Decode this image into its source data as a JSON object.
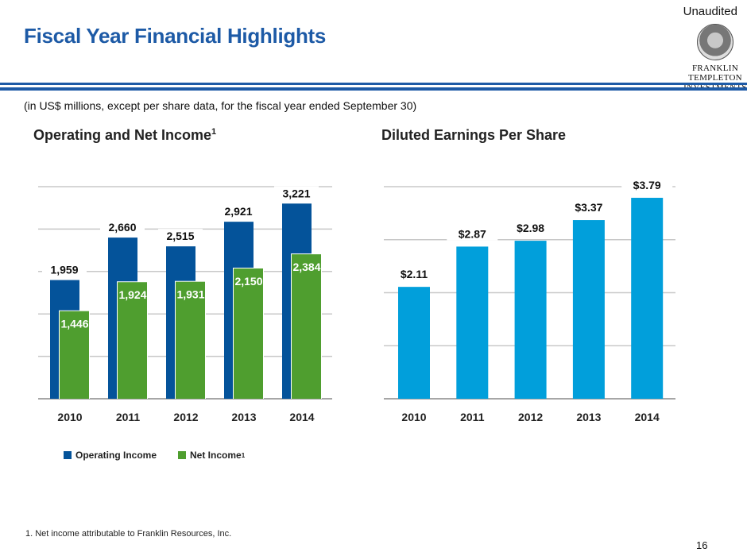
{
  "header": {
    "title": "Fiscal Year Financial Highlights",
    "status": "Unaudited",
    "logo_text": [
      "FRANKLIN TEMPLETON",
      "INVESTMENTS"
    ],
    "subtitle": "(in US$ millions, except per share data, for the fiscal year ended September 30)"
  },
  "colors": {
    "brand": "#1d5aa6",
    "operating": "#04539a",
    "net": "#4f9e2f",
    "eps": "#019fdb",
    "grid": "#c8c8c8"
  },
  "chart_data": [
    {
      "type": "bar",
      "title": "Operating and Net Income",
      "title_sup": "1",
      "categories": [
        "2010",
        "2011",
        "2012",
        "2013",
        "2014"
      ],
      "series": [
        {
          "name": "Operating Income",
          "values": [
            1959,
            2660,
            2515,
            2921,
            3221
          ],
          "labels": [
            "1,959",
            "2,660",
            "2,515",
            "2,921",
            "3,221"
          ]
        },
        {
          "name": "Net Income",
          "name_sup": "1",
          "values": [
            1446,
            1924,
            1931,
            2150,
            2384
          ],
          "labels": [
            "1,446",
            "1,924",
            "1,931",
            "2,150",
            "2,384"
          ]
        }
      ],
      "ylim": [
        0,
        3500
      ],
      "grid": true,
      "legend": "bottom"
    },
    {
      "type": "bar",
      "title": "Diluted Earnings Per Share",
      "categories": [
        "2010",
        "2011",
        "2012",
        "2013",
        "2014"
      ],
      "values": [
        2.11,
        2.87,
        2.98,
        3.37,
        3.79
      ],
      "labels": [
        "$2.11",
        "$2.87",
        "$2.98",
        "$3.37",
        "$3.79"
      ],
      "ylim": [
        0,
        4
      ],
      "grid": true
    }
  ],
  "footnote": "1. Net income attributable to Franklin Resources, Inc.",
  "page_number": "16"
}
